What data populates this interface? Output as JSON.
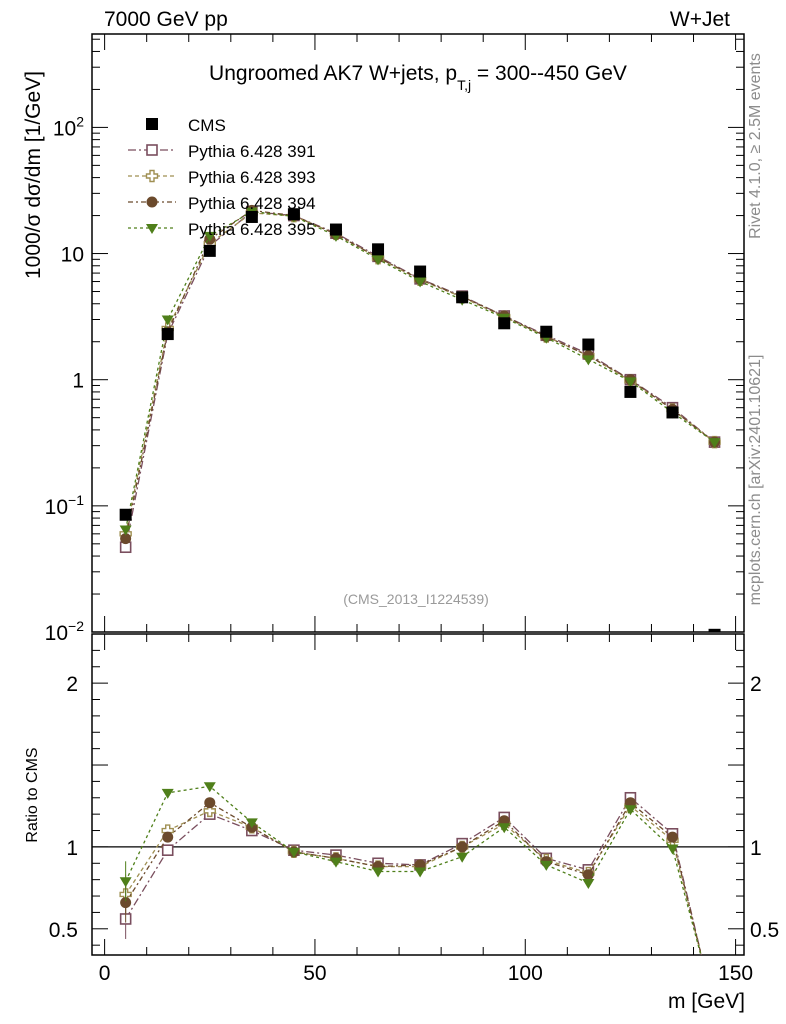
{
  "header": {
    "left": "7000 GeV pp",
    "right": "W+Jet"
  },
  "side_labels": {
    "rivet": "Rivet 4.1.0, ≥ 2.5M events",
    "mcplots": "mcplots.cern.ch [arXiv:2401.10621]"
  },
  "chart_data": {
    "type": "line",
    "title": "Ungroomed AK7 W+jets, p_T,j = 300--450 GeV",
    "analysis_tag": "(CMS_2013_I1224539)",
    "xlabel": "m [GeV]",
    "ylabel": "1000/σ  dσ/dm [1/GeV]",
    "ratio_ylabel": "Ratio to CMS",
    "xlim": [
      -3,
      152
    ],
    "ylim": [
      0.01,
      550
    ],
    "yscale": "log",
    "ratio_ylim": [
      0.34,
      2.3
    ],
    "x_ticks": [
      0,
      50,
      100,
      150
    ],
    "y_ticks": [
      {
        "v": 0.01,
        "base": "10",
        "exp": "−2"
      },
      {
        "v": 0.1,
        "base": "10",
        "exp": "−1"
      },
      {
        "v": 1,
        "base": "1",
        "exp": ""
      },
      {
        "v": 10,
        "base": "10",
        "exp": ""
      },
      {
        "v": 100,
        "base": "10",
        "exp": "2"
      }
    ],
    "ratio_ticks": [
      {
        "v": 0.5,
        "label": "0.5"
      },
      {
        "v": 1,
        "label": "1"
      },
      {
        "v": 2,
        "label": "2"
      }
    ],
    "x": [
      5,
      15,
      25,
      35,
      45,
      55,
      65,
      75,
      85,
      95,
      105,
      115,
      125,
      135,
      145
    ],
    "data": {
      "name": "CMS",
      "values": [
        0.085,
        2.3,
        10.5,
        19.5,
        20.5,
        15.5,
        10.8,
        7.2,
        4.5,
        2.8,
        2.4,
        1.9,
        0.8,
        0.55,
        0.0095
      ]
    },
    "series": [
      {
        "name": "Pythia 6.428 391",
        "color": "#7a4e5e",
        "marker": "open-square",
        "values": [
          0.047,
          2.3,
          11.5,
          21.5,
          20.0,
          14.5,
          9.5,
          6.3,
          4.6,
          3.2,
          2.25,
          1.6,
          1.0,
          0.6,
          0.32
        ],
        "ratio": [
          0.56,
          0.98,
          1.2,
          1.1,
          0.98,
          0.95,
          0.9,
          0.89,
          1.02,
          1.18,
          0.93,
          0.86,
          1.3,
          1.08
        ]
      },
      {
        "name": "Pythia 6.428 393",
        "color": "#9f8f52",
        "marker": "open-cross",
        "values": [
          0.06,
          2.55,
          12.0,
          21.0,
          19.8,
          14.3,
          9.2,
          6.2,
          4.5,
          3.15,
          2.2,
          1.55,
          0.98,
          0.58,
          0.32
        ],
        "ratio": [
          0.71,
          1.1,
          1.22,
          1.12,
          0.97,
          0.93,
          0.88,
          0.88,
          1.0,
          1.14,
          0.92,
          0.84,
          1.25,
          1.04
        ]
      },
      {
        "name": "Pythia 6.428 394",
        "color": "#6b4a2c",
        "marker": "filled-circle",
        "values": [
          0.055,
          2.4,
          13.0,
          22.0,
          20.0,
          14.2,
          9.3,
          6.25,
          4.55,
          3.2,
          2.2,
          1.55,
          1.0,
          0.58,
          0.32
        ],
        "ratio": [
          0.66,
          1.06,
          1.27,
          1.12,
          0.97,
          0.93,
          0.88,
          0.89,
          1.0,
          1.16,
          0.91,
          0.83,
          1.27,
          1.06
        ]
      },
      {
        "name": "Pythia 6.428 395",
        "color": "#4f7f1a",
        "marker": "filled-triangle-down",
        "values": [
          0.065,
          3.0,
          13.8,
          21.5,
          19.7,
          13.8,
          9.0,
          6.0,
          4.3,
          3.1,
          2.15,
          1.45,
          0.97,
          0.55,
          0.32
        ],
        "ratio": [
          0.79,
          1.33,
          1.37,
          1.15,
          0.97,
          0.91,
          0.85,
          0.85,
          0.94,
          1.12,
          0.89,
          0.78,
          1.23,
          0.99
        ]
      }
    ]
  }
}
